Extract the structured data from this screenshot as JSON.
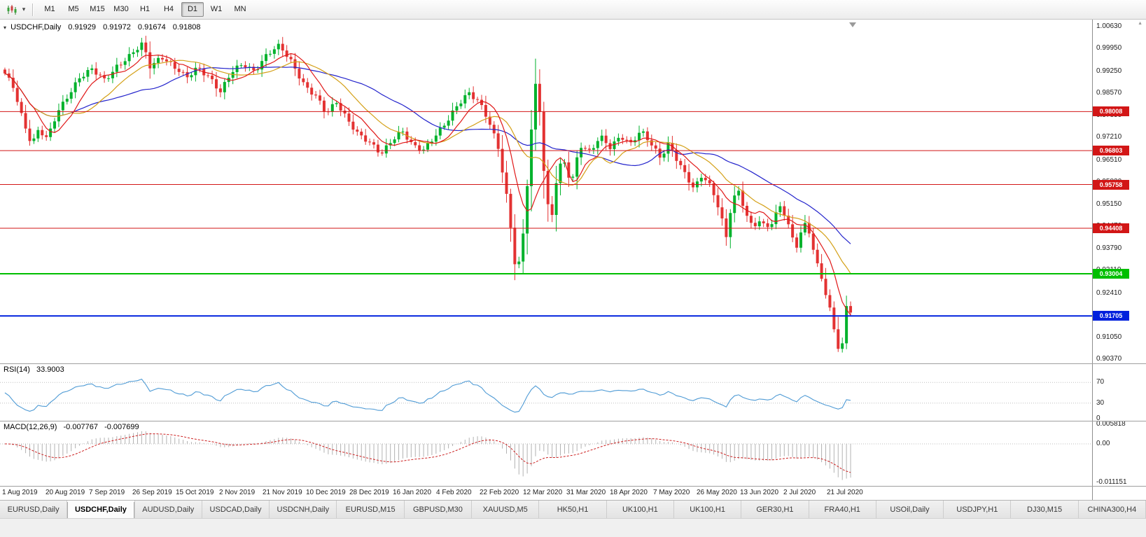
{
  "toolbar": {
    "timeframes": [
      {
        "label": "M1",
        "active": false
      },
      {
        "label": "M5",
        "active": false
      },
      {
        "label": "M15",
        "active": false
      },
      {
        "label": "M30",
        "active": false
      },
      {
        "label": "H1",
        "active": false
      },
      {
        "label": "H4",
        "active": false
      },
      {
        "label": "D1",
        "active": true
      },
      {
        "label": "W1",
        "active": false
      },
      {
        "label": "MN",
        "active": false
      }
    ]
  },
  "icons": {
    "chart_type_caret": "▾",
    "header_marker": "▾",
    "shift_marker": "▼",
    "axis_scroll": "▲"
  },
  "chart": {
    "header": {
      "symbol": "USDCHF,Daily",
      "open": "0.91929",
      "high": "0.91972",
      "low": "0.91674",
      "close": "0.91808"
    }
  },
  "rsi": {
    "name": "RSI(14)",
    "value": "33.9003",
    "ticks": [
      "70",
      "30",
      "0"
    ],
    "color": "#4f9bd5",
    "levels": [
      70,
      30
    ]
  },
  "macd": {
    "name": "MACD(12,26,9)",
    "value1": "-0.007767",
    "value2": "-0.007699",
    "ticks": [
      {
        "label": "0.005818",
        "value": 0.005818
      },
      {
        "label": "0.00",
        "value": 0
      },
      {
        "label": "-0.011151",
        "value": -0.011151
      }
    ],
    "hist_color": "#b2b2b2",
    "signal_color": "#cc2020"
  },
  "tabs": [
    {
      "label": "EURUSD,Daily",
      "active": false
    },
    {
      "label": "USDCHF,Daily",
      "active": true
    },
    {
      "label": "AUDUSD,Daily",
      "active": false
    },
    {
      "label": "USDCAD,Daily",
      "active": false
    },
    {
      "label": "USDCNH,Daily",
      "active": false
    },
    {
      "label": "EURUSD,M15",
      "active": false
    },
    {
      "label": "GBPUSD,M30",
      "active": false
    },
    {
      "label": "XAUUSD,M5",
      "active": false
    },
    {
      "label": "HK50,H1",
      "active": false
    },
    {
      "label": "UK100,H1",
      "active": false
    },
    {
      "label": "UK100,H1",
      "active": false
    },
    {
      "label": "GER30,H1",
      "active": false
    },
    {
      "label": "FRA40,H1",
      "active": false
    },
    {
      "label": "USOil,Daily",
      "active": false
    },
    {
      "label": "USDJPY,H1",
      "active": false
    },
    {
      "label": "DJ30,M15",
      "active": false
    },
    {
      "label": "CHINA300,H4",
      "active": false
    }
  ],
  "chart_data": {
    "type": "candlestick",
    "symbol": "USDCHF",
    "timeframe": "Daily",
    "last_ohlc": {
      "open": 0.91929,
      "high": 0.91972,
      "low": 0.91674,
      "close": 0.91808
    },
    "rsi_value": 33.9003,
    "macd_value": -0.007767,
    "macd_signal_value": -0.007699,
    "candle_count": 205,
    "price_axis": {
      "min": 0.9037,
      "max": 1.0063,
      "ticks": [
        {
          "label": "1.00630",
          "value": 1.0063
        },
        {
          "label": "0.99950",
          "value": 0.9995
        },
        {
          "label": "0.99250",
          "value": 0.9925
        },
        {
          "label": "0.98570",
          "value": 0.9857
        },
        {
          "label": "0.97890",
          "value": 0.9789
        },
        {
          "label": "0.97210",
          "value": 0.9721
        },
        {
          "label": "0.96510",
          "value": 0.9651
        },
        {
          "label": "0.95830",
          "value": 0.9583
        },
        {
          "label": "0.95150",
          "value": 0.9515
        },
        {
          "label": "0.94470",
          "value": 0.9447
        },
        {
          "label": "0.93790",
          "value": 0.9379
        },
        {
          "label": "0.93110",
          "value": 0.9311
        },
        {
          "label": "0.92410",
          "value": 0.9241
        },
        {
          "label": "0.91730",
          "value": 0.9173
        },
        {
          "label": "0.91050",
          "value": 0.9105
        },
        {
          "label": "0.90370",
          "value": 0.9037
        }
      ]
    },
    "levels": [
      {
        "price": 0.98008,
        "label": "0.98008",
        "color": "#d21616",
        "width": 1
      },
      {
        "price": 0.96803,
        "label": "0.96803",
        "color": "#d21616",
        "width": 1
      },
      {
        "price": 0.95758,
        "label": "0.95758",
        "color": "#d21616",
        "width": 1
      },
      {
        "price": 0.94408,
        "label": "0.94408",
        "color": "#d21616",
        "width": 1
      },
      {
        "price": 0.93004,
        "label": "0.93004",
        "color": "#00bf00",
        "width": 2
      },
      {
        "price": 0.91705,
        "label": "0.91705",
        "color": "#0020dd",
        "width": 2
      }
    ],
    "x_labels": [
      "1 Aug 2019",
      "20 Aug 2019",
      "7 Sep 2019",
      "26 Sep 2019",
      "15 Oct 2019",
      "2 Nov 2019",
      "21 Nov 2019",
      "10 Dec 2019",
      "28 Dec 2019",
      "16 Jan 2020",
      "4 Feb 2020",
      "22 Feb 2020",
      "12 Mar 2020",
      "31 Mar 2020",
      "18 Apr 2020",
      "7 May 2020",
      "26 May 2020",
      "13 Jun 2020",
      "2 Jul 2020",
      "21 Jul 2020"
    ],
    "colors": {
      "up": "#00b22c",
      "down": "#e33232",
      "ma_fast": "#e01818",
      "ma_mid": "#d4a017",
      "ma_slow": "#2424cc"
    },
    "moving_averages": [
      {
        "period": 8,
        "color_key": "ma_fast"
      },
      {
        "period": 17,
        "color_key": "ma_mid"
      },
      {
        "period": 34,
        "color_key": "ma_slow"
      }
    ],
    "anchors": [
      [
        0.0,
        0.9915
      ],
      [
        0.01,
        0.9878
      ],
      [
        0.022,
        0.9772
      ],
      [
        0.032,
        0.97
      ],
      [
        0.04,
        0.9745
      ],
      [
        0.05,
        0.9712
      ],
      [
        0.062,
        0.9798
      ],
      [
        0.075,
        0.9855
      ],
      [
        0.088,
        0.9905
      ],
      [
        0.103,
        0.9928
      ],
      [
        0.118,
        0.9898
      ],
      [
        0.132,
        0.9942
      ],
      [
        0.148,
        0.9972
      ],
      [
        0.163,
        1.0008
      ],
      [
        0.172,
        0.9938
      ],
      [
        0.185,
        0.9975
      ],
      [
        0.2,
        0.9938
      ],
      [
        0.215,
        0.9902
      ],
      [
        0.228,
        0.9938
      ],
      [
        0.242,
        0.991
      ],
      [
        0.255,
        0.986
      ],
      [
        0.268,
        0.992
      ],
      [
        0.282,
        0.995
      ],
      [
        0.295,
        0.9928
      ],
      [
        0.31,
        0.9975
      ],
      [
        0.325,
        1.0002
      ],
      [
        0.34,
        0.9952
      ],
      [
        0.355,
        0.988
      ],
      [
        0.368,
        0.9845
      ],
      [
        0.38,
        0.9792
      ],
      [
        0.392,
        0.9833
      ],
      [
        0.405,
        0.978
      ],
      [
        0.418,
        0.9728
      ],
      [
        0.432,
        0.97
      ],
      [
        0.445,
        0.9672
      ],
      [
        0.458,
        0.9718
      ],
      [
        0.47,
        0.974
      ],
      [
        0.482,
        0.9692
      ],
      [
        0.495,
        0.9682
      ],
      [
        0.508,
        0.9728
      ],
      [
        0.522,
        0.9768
      ],
      [
        0.535,
        0.9815
      ],
      [
        0.548,
        0.9858
      ],
      [
        0.56,
        0.9838
      ],
      [
        0.572,
        0.9776
      ],
      [
        0.583,
        0.969
      ],
      [
        0.592,
        0.956
      ],
      [
        0.599,
        0.942
      ],
      [
        0.605,
        0.9293
      ],
      [
        0.612,
        0.94
      ],
      [
        0.619,
        0.9625
      ],
      [
        0.626,
        0.9868
      ],
      [
        0.63,
        0.9905
      ],
      [
        0.635,
        0.969
      ],
      [
        0.64,
        0.953
      ],
      [
        0.646,
        0.9458
      ],
      [
        0.653,
        0.9605
      ],
      [
        0.66,
        0.9658
      ],
      [
        0.67,
        0.9582
      ],
      [
        0.68,
        0.97
      ],
      [
        0.692,
        0.9672
      ],
      [
        0.704,
        0.9722
      ],
      [
        0.716,
        0.9692
      ],
      [
        0.728,
        0.973
      ],
      [
        0.74,
        0.97
      ],
      [
        0.752,
        0.9738
      ],
      [
        0.764,
        0.9702
      ],
      [
        0.775,
        0.9662
      ],
      [
        0.785,
        0.9705
      ],
      [
        0.795,
        0.965
      ],
      [
        0.805,
        0.96
      ],
      [
        0.815,
        0.956
      ],
      [
        0.825,
        0.961
      ],
      [
        0.835,
        0.957
      ],
      [
        0.845,
        0.95
      ],
      [
        0.853,
        0.9408
      ],
      [
        0.86,
        0.9528
      ],
      [
        0.868,
        0.955
      ],
      [
        0.876,
        0.949
      ],
      [
        0.884,
        0.9445
      ],
      [
        0.892,
        0.947
      ],
      [
        0.9,
        0.944
      ],
      [
        0.908,
        0.946
      ],
      [
        0.916,
        0.9505
      ],
      [
        0.924,
        0.9475
      ],
      [
        0.93,
        0.9415
      ],
      [
        0.936,
        0.9388
      ],
      [
        0.942,
        0.944
      ],
      [
        0.948,
        0.946
      ],
      [
        0.954,
        0.94
      ],
      [
        0.96,
        0.933
      ],
      [
        0.968,
        0.9262
      ],
      [
        0.975,
        0.9195
      ],
      [
        0.981,
        0.9118
      ],
      [
        0.988,
        0.9052
      ],
      [
        0.994,
        0.9148
      ],
      [
        1.0,
        0.9181
      ]
    ]
  }
}
